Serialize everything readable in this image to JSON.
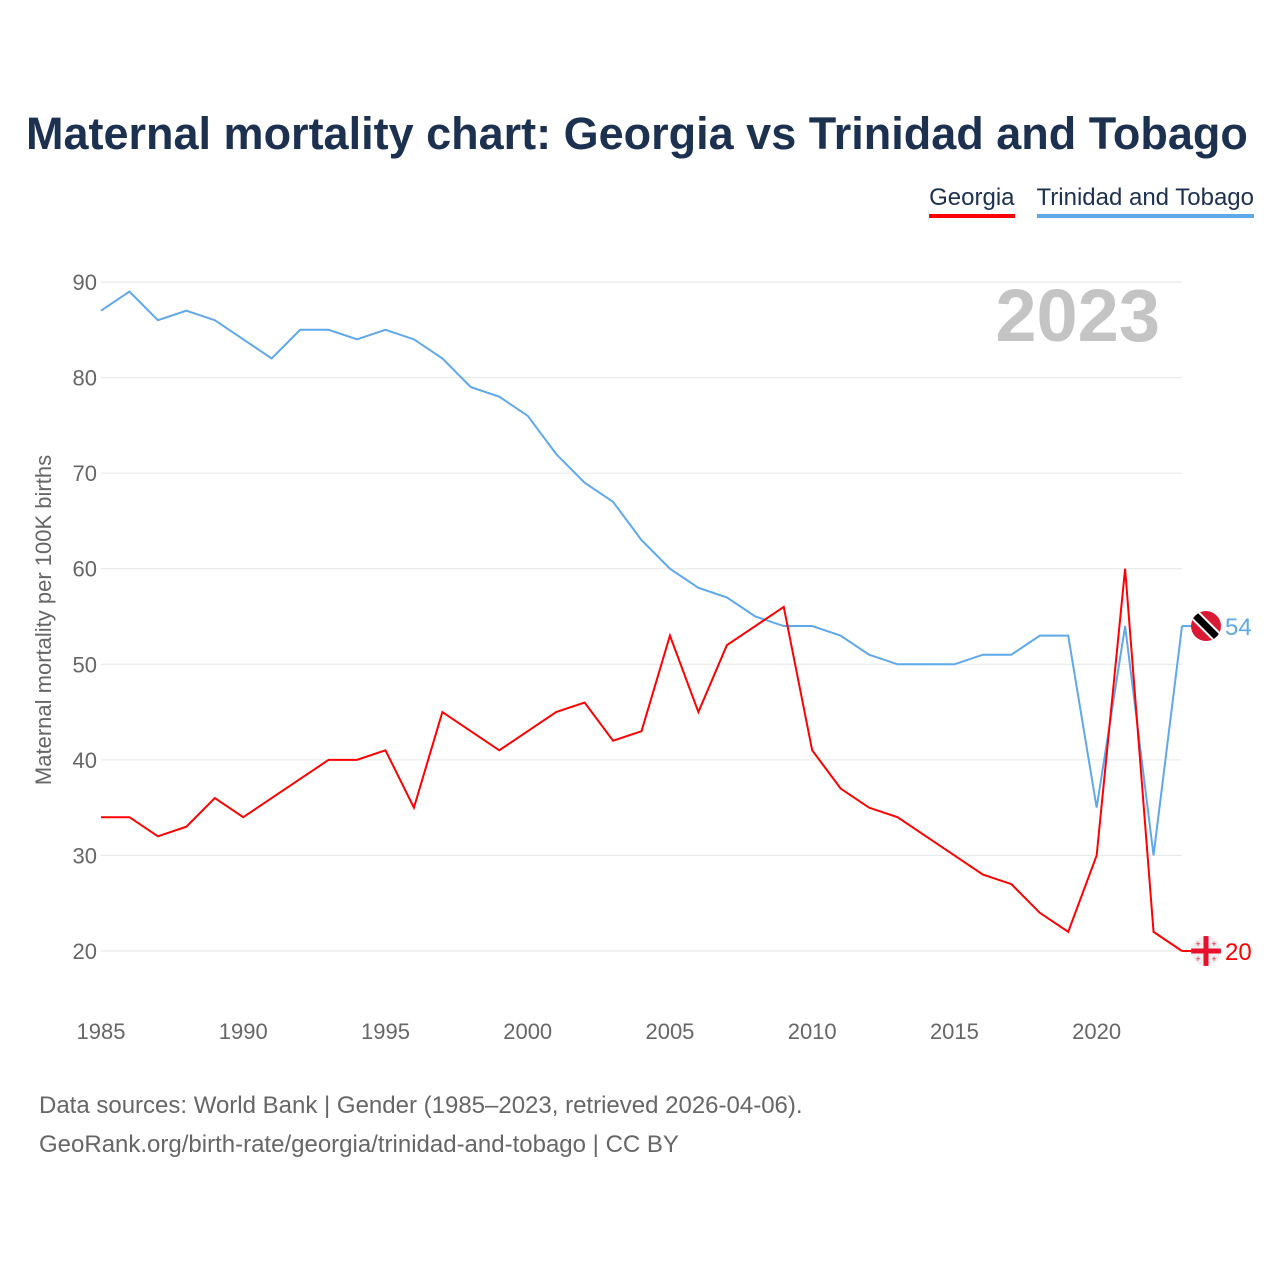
{
  "chart_data": {
    "type": "line",
    "title": "Maternal mortality chart: Georgia vs Trinidad and Tobago",
    "ylabel": "Maternal mortality per 100K births",
    "xlabel": "",
    "year_label": "2023",
    "ylim": [
      15,
      90
    ],
    "xlim": [
      1985,
      2023
    ],
    "yticks": [
      20,
      30,
      40,
      50,
      60,
      70,
      80,
      90
    ],
    "xticks": [
      1985,
      1990,
      1995,
      2000,
      2005,
      2010,
      2015,
      2020
    ],
    "legend_placement": "top-right",
    "x": [
      1985,
      1986,
      1987,
      1988,
      1989,
      1990,
      1991,
      1992,
      1993,
      1994,
      1995,
      1996,
      1997,
      1998,
      1999,
      2000,
      2001,
      2002,
      2003,
      2004,
      2005,
      2006,
      2007,
      2008,
      2009,
      2010,
      2011,
      2012,
      2013,
      2014,
      2015,
      2016,
      2017,
      2018,
      2019,
      2020,
      2021,
      2022,
      2023
    ],
    "series": [
      {
        "name": "Georgia",
        "color": "#ff0000",
        "end_label": "20",
        "flag": "georgia-flag",
        "values": [
          34,
          34,
          32,
          33,
          36,
          34,
          36,
          38,
          40,
          40,
          41,
          35,
          45,
          43,
          41,
          43,
          45,
          46,
          42,
          43,
          53,
          45,
          52,
          54,
          56,
          41,
          37,
          35,
          34,
          32,
          30,
          28,
          27,
          24,
          22,
          30,
          60,
          22,
          20
        ]
      },
      {
        "name": "Trinidad and Tobago",
        "color": "#5fa8ea",
        "end_label": "54",
        "flag": "trinidad-and-tobago-flag",
        "values": [
          87,
          89,
          86,
          87,
          86,
          84,
          82,
          85,
          85,
          84,
          85,
          84,
          82,
          79,
          78,
          76,
          72,
          69,
          67,
          63,
          60,
          58,
          57,
          55,
          54,
          54,
          53,
          51,
          50,
          50,
          50,
          51,
          51,
          53,
          53,
          35,
          54,
          30,
          54
        ]
      }
    ]
  },
  "footer": {
    "line1": "Data sources: World Bank | Gender (1985–2023, retrieved 2026-04-06).",
    "line2": "GeoRank.org/birth-rate/georgia/trinidad-and-tobago | CC BY"
  }
}
